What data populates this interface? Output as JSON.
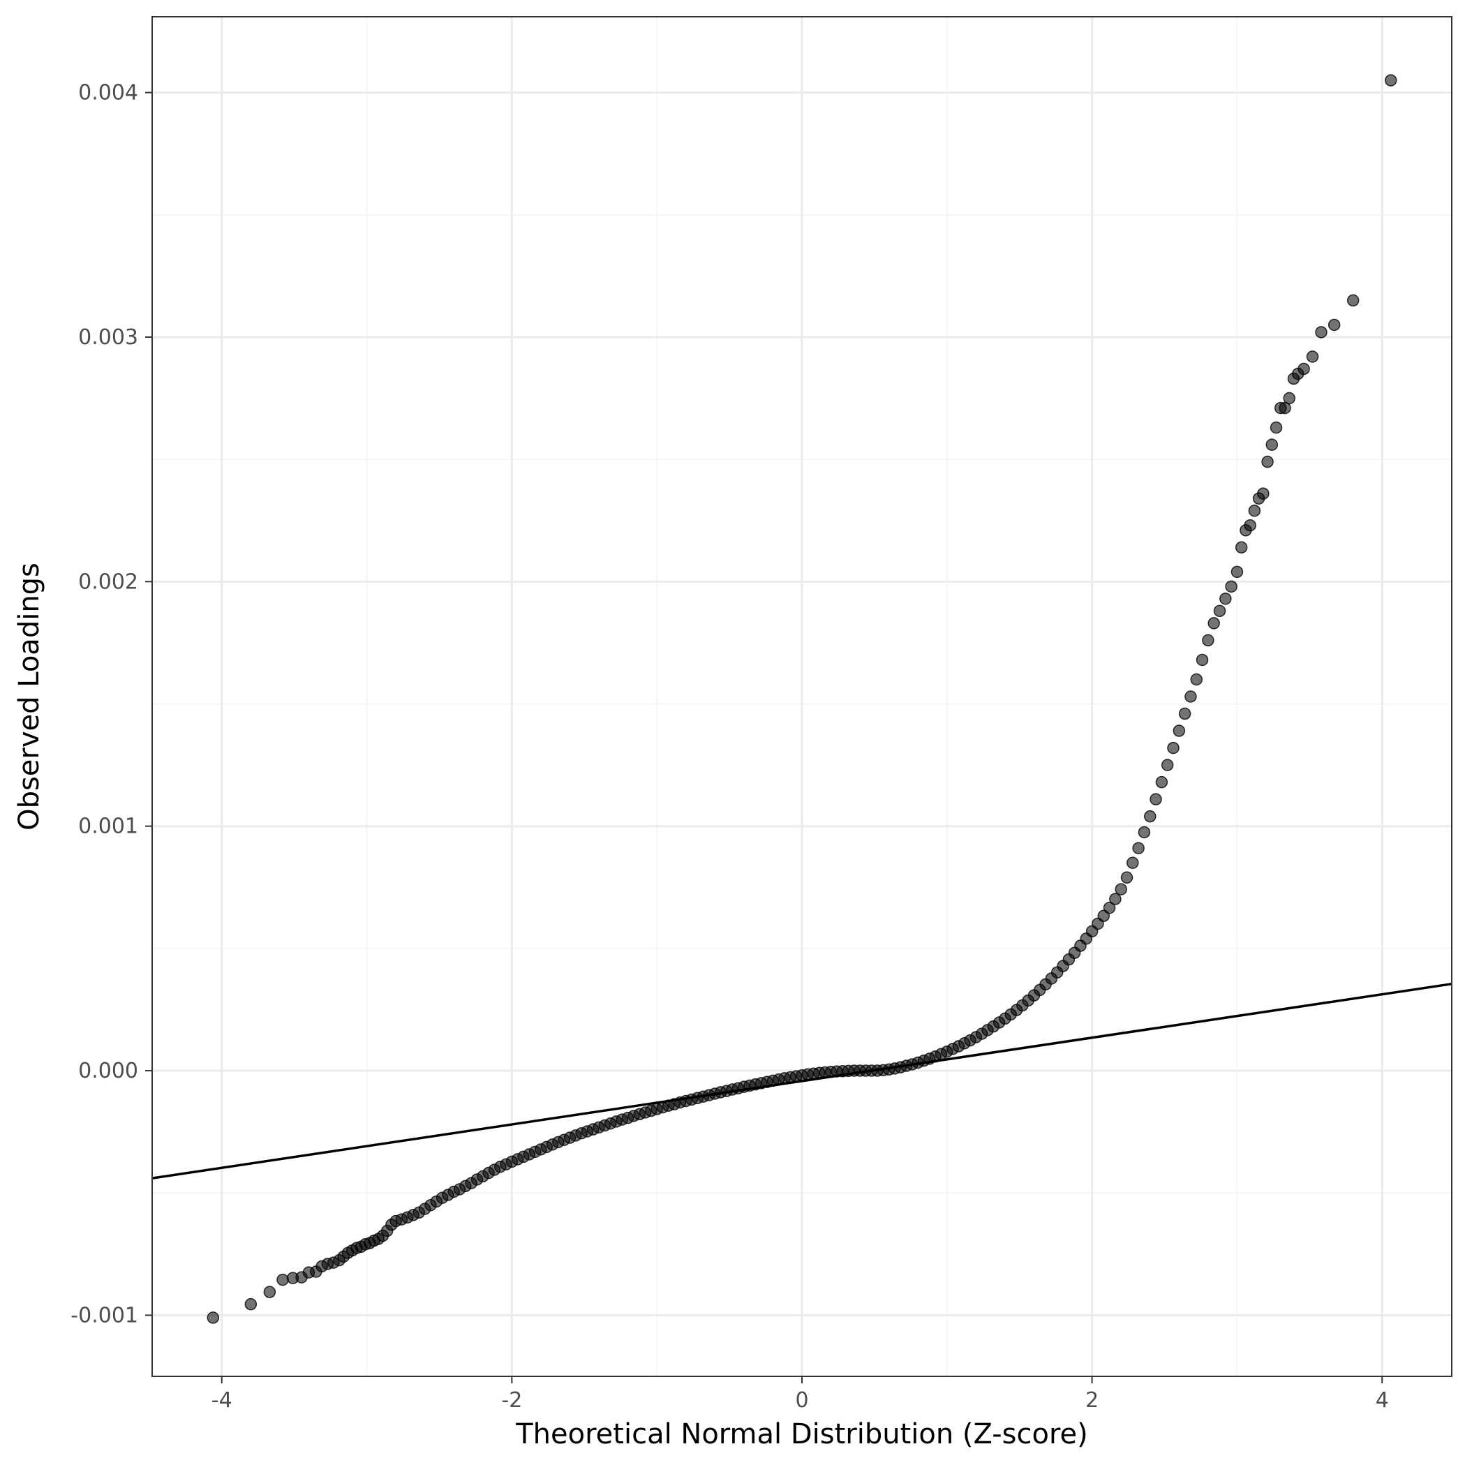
{
  "chart_data": {
    "type": "scatter",
    "title": "",
    "xlabel": "Theoretical Normal Distribution (Z-score)",
    "ylabel": "Observed Loadings",
    "xlim": [
      -4.48,
      4.48
    ],
    "ylim": [
      -0.00125,
      0.00431
    ],
    "x_ticks": [
      -4,
      -2,
      0,
      2,
      4
    ],
    "x_tick_labels": [
      "-4",
      "-2",
      "0",
      "2",
      "4"
    ],
    "y_ticks": [
      -0.001,
      0.0,
      0.001,
      0.002,
      0.003,
      0.004
    ],
    "y_tick_labels": [
      "-0.001",
      "0.000",
      "0.001",
      "0.002",
      "0.003",
      "0.004"
    ],
    "grid": true,
    "point_color": "#000000",
    "point_opacity": 0.55,
    "reference_line": {
      "slope": 8.87e-05,
      "intercept": -4.24e-05,
      "color": "#000000"
    },
    "series": [
      {
        "values": [
          [
            -4.06,
            -0.00101
          ],
          [
            -3.8,
            -0.000955
          ],
          [
            -3.67,
            -0.000905
          ],
          [
            -3.58,
            -0.000855
          ],
          [
            -3.51,
            -0.000848
          ],
          [
            -3.45,
            -0.000845
          ],
          [
            -3.4,
            -0.000825
          ],
          [
            -3.35,
            -0.000822
          ],
          [
            -3.31,
            -0.0008
          ],
          [
            -3.27,
            -0.00079
          ],
          [
            -3.23,
            -0.000785
          ],
          [
            -3.19,
            -0.000775
          ],
          [
            -3.16,
            -0.00076
          ],
          [
            -3.13,
            -0.000745
          ],
          [
            -3.1,
            -0.000735
          ],
          [
            -3.07,
            -0.000725
          ],
          [
            -3.04,
            -0.00072
          ],
          [
            -3.01,
            -0.00071
          ],
          [
            -2.98,
            -0.000705
          ],
          [
            -2.95,
            -0.000695
          ],
          [
            -2.92,
            -0.000688
          ],
          [
            -2.89,
            -0.000675
          ],
          [
            -2.86,
            -0.000655
          ],
          [
            -2.83,
            -0.00063
          ],
          [
            -2.8,
            -0.000615
          ],
          [
            -2.76,
            -0.000608
          ],
          [
            -2.72,
            -0.0006
          ],
          [
            -2.68,
            -0.00059
          ],
          [
            -2.64,
            -0.00058
          ],
          [
            -2.6,
            -0.000565
          ],
          [
            -2.56,
            -0.00055
          ],
          [
            -2.52,
            -0.000535
          ],
          [
            -2.48,
            -0.00052
          ],
          [
            -2.44,
            -0.000508
          ],
          [
            -2.4,
            -0.000495
          ],
          [
            -2.36,
            -0.000485
          ],
          [
            -2.32,
            -0.000472
          ],
          [
            -2.28,
            -0.00046
          ],
          [
            -2.24,
            -0.000445
          ],
          [
            -2.2,
            -0.000432
          ],
          [
            -2.16,
            -0.000418
          ],
          [
            -2.12,
            -0.000405
          ],
          [
            -2.08,
            -0.000393
          ],
          [
            -2.04,
            -0.000383
          ],
          [
            -2.0,
            -0.000372
          ],
          [
            -1.96,
            -0.000362
          ],
          [
            -1.92,
            -0.000352
          ],
          [
            -1.88,
            -0.000342
          ],
          [
            -1.84,
            -0.000332
          ],
          [
            -1.8,
            -0.000322
          ],
          [
            -1.76,
            -0.000312
          ],
          [
            -1.72,
            -0.000302
          ],
          [
            -1.68,
            -0.000292
          ],
          [
            -1.64,
            -0.000283
          ],
          [
            -1.6,
            -0.000274
          ],
          [
            -1.56,
            -0.000265
          ],
          [
            -1.52,
            -0.000256
          ],
          [
            -1.48,
            -0.000248
          ],
          [
            -1.44,
            -0.00024
          ],
          [
            -1.4,
            -0.000232
          ],
          [
            -1.36,
            -0.000224
          ],
          [
            -1.32,
            -0.000216
          ],
          [
            -1.28,
            -0.000208
          ],
          [
            -1.24,
            -0.0002
          ],
          [
            -1.2,
            -0.000193
          ],
          [
            -1.16,
            -0.000185
          ],
          [
            -1.12,
            -0.000178
          ],
          [
            -1.08,
            -0.000171
          ],
          [
            -1.04,
            -0.000164
          ],
          [
            -1.0,
            -0.000157
          ],
          [
            -0.96,
            -0.00015
          ],
          [
            -0.92,
            -0.000143
          ],
          [
            -0.88,
            -0.000137
          ],
          [
            -0.84,
            -0.00013
          ],
          [
            -0.8,
            -0.000124
          ],
          [
            -0.76,
            -0.000118
          ],
          [
            -0.72,
            -0.000112
          ],
          [
            -0.68,
            -0.000106
          ],
          [
            -0.64,
            -0.0001
          ],
          [
            -0.6,
            -9.4e-05
          ],
          [
            -0.56,
            -8.8e-05
          ],
          [
            -0.52,
            -8.3e-05
          ],
          [
            -0.48,
            -7.7e-05
          ],
          [
            -0.44,
            -7.2e-05
          ],
          [
            -0.4,
            -6.6e-05
          ],
          [
            -0.36,
            -6.1e-05
          ],
          [
            -0.32,
            -5.6e-05
          ],
          [
            -0.28,
            -5.1e-05
          ],
          [
            -0.24,
            -4.6e-05
          ],
          [
            -0.2,
            -4.1e-05
          ],
          [
            -0.16,
            -3.6e-05
          ],
          [
            -0.12,
            -3.1e-05
          ],
          [
            -0.08,
            -2.7e-05
          ],
          [
            -0.04,
            -2.3e-05
          ],
          [
            0.0,
            -1.9e-05
          ],
          [
            0.04,
            -1.5e-05
          ],
          [
            0.08,
            -1.2e-05
          ],
          [
            0.12,
            -9e-06
          ],
          [
            0.16,
            -7e-06
          ],
          [
            0.2,
            -5e-06
          ],
          [
            0.24,
            -3e-06
          ],
          [
            0.28,
            -2e-06
          ],
          [
            0.32,
            -1e-06
          ],
          [
            0.36,
            0.0
          ],
          [
            0.4,
            0.0
          ],
          [
            0.44,
            0.0
          ],
          [
            0.48,
            0.0
          ],
          [
            0.52,
            0.0
          ],
          [
            0.56,
            2e-06
          ],
          [
            0.6,
            5e-06
          ],
          [
            0.64,
            9e-06
          ],
          [
            0.68,
            1.4e-05
          ],
          [
            0.72,
            2e-05
          ],
          [
            0.76,
            2.6e-05
          ],
          [
            0.8,
            3.3e-05
          ],
          [
            0.84,
            4.1e-05
          ],
          [
            0.88,
            4.9e-05
          ],
          [
            0.92,
            5.8e-05
          ],
          [
            0.96,
            6.8e-05
          ],
          [
            1.0,
            7.8e-05
          ],
          [
            1.04,
            8.9e-05
          ],
          [
            1.08,
            0.0001
          ],
          [
            1.12,
            0.000112
          ],
          [
            1.16,
            0.000124
          ],
          [
            1.2,
            0.000137
          ],
          [
            1.24,
            0.000151
          ],
          [
            1.28,
            0.000166
          ],
          [
            1.32,
            0.000181
          ],
          [
            1.36,
            0.000197
          ],
          [
            1.4,
            0.000213
          ],
          [
            1.44,
            0.00023
          ],
          [
            1.48,
            0.000248
          ],
          [
            1.52,
            0.000267
          ],
          [
            1.56,
            0.000287
          ],
          [
            1.6,
            0.000308
          ],
          [
            1.64,
            0.00033
          ],
          [
            1.68,
            0.000353
          ],
          [
            1.72,
            0.000377
          ],
          [
            1.76,
            0.000402
          ],
          [
            1.8,
            0.000428
          ],
          [
            1.84,
            0.000455
          ],
          [
            1.88,
            0.000482
          ],
          [
            1.92,
            0.000511
          ],
          [
            1.96,
            0.00054
          ],
          [
            2.0,
            0.00057
          ],
          [
            2.04,
            0.000601
          ],
          [
            2.08,
            0.000633
          ],
          [
            2.12,
            0.000666
          ],
          [
            2.16,
            0.000702
          ],
          [
            2.2,
            0.000742
          ],
          [
            2.24,
            0.00079
          ],
          [
            2.28,
            0.00085
          ],
          [
            2.32,
            0.00091
          ],
          [
            2.36,
            0.000975
          ],
          [
            2.4,
            0.00104
          ],
          [
            2.44,
            0.00111
          ],
          [
            2.48,
            0.00118
          ],
          [
            2.52,
            0.00125
          ],
          [
            2.56,
            0.00132
          ],
          [
            2.6,
            0.00139
          ],
          [
            2.64,
            0.00146
          ],
          [
            2.68,
            0.00153
          ],
          [
            2.72,
            0.0016
          ],
          [
            2.76,
            0.00168
          ],
          [
            2.8,
            0.00176
          ],
          [
            2.84,
            0.00183
          ],
          [
            2.88,
            0.00188
          ],
          [
            2.92,
            0.00193
          ],
          [
            2.96,
            0.00198
          ],
          [
            3.0,
            0.00204
          ],
          [
            3.03,
            0.00214
          ],
          [
            3.06,
            0.00221
          ],
          [
            3.09,
            0.00223
          ],
          [
            3.12,
            0.00229
          ],
          [
            3.15,
            0.00234
          ],
          [
            3.18,
            0.00236
          ],
          [
            3.21,
            0.00249
          ],
          [
            3.24,
            0.00256
          ],
          [
            3.27,
            0.00263
          ],
          [
            3.3,
            0.00271
          ],
          [
            3.33,
            0.00271
          ],
          [
            3.36,
            0.00275
          ],
          [
            3.39,
            0.00283
          ],
          [
            3.42,
            0.00285
          ],
          [
            3.46,
            0.00287
          ],
          [
            3.52,
            0.00292
          ],
          [
            3.58,
            0.00302
          ],
          [
            3.67,
            0.00305
          ],
          [
            3.8,
            0.00315
          ],
          [
            4.06,
            0.00405
          ]
        ]
      }
    ]
  }
}
